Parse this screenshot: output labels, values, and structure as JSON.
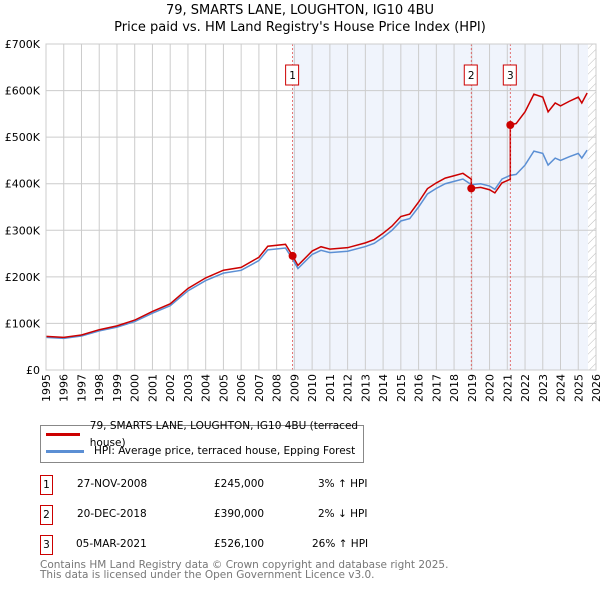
{
  "chart_data": {
    "type": "line",
    "title": "79, SMARTS LANE, LOUGHTON, IG10 4BU",
    "subtitle": "Price paid vs. HM Land Registry's House Price Index (HPI)",
    "xlim": [
      1995,
      2026
    ],
    "ylim": [
      0,
      700000
    ],
    "x_ticks": [
      "1995",
      "1996",
      "1997",
      "1998",
      "1999",
      "2000",
      "2001",
      "2002",
      "2003",
      "2004",
      "2005",
      "2006",
      "2007",
      "2008",
      "2009",
      "2010",
      "2011",
      "2012",
      "2013",
      "2014",
      "2015",
      "2016",
      "2017",
      "2018",
      "2019",
      "2020",
      "2021",
      "2022",
      "2023",
      "2024",
      "2025",
      "2026"
    ],
    "y_ticks": [
      {
        "v": 0,
        "label": "£0"
      },
      {
        "v": 100000,
        "label": "£100K"
      },
      {
        "v": 200000,
        "label": "£200K"
      },
      {
        "v": 300000,
        "label": "£300K"
      },
      {
        "v": 400000,
        "label": "£400K"
      },
      {
        "v": 500000,
        "label": "£500K"
      },
      {
        "v": 600000,
        "label": "£600K"
      },
      {
        "v": 700000,
        "label": "£700K"
      }
    ],
    "grid": true,
    "shaded_range": [
      2008.9,
      2025.55
    ],
    "hatched_from": 2025.55,
    "series": [
      {
        "name": "HPI: Average price, terraced house, Epping Forest",
        "color": "#5b8fd4",
        "x": [
          1995,
          1996,
          1997,
          1998,
          1999,
          2000,
          2001,
          2002,
          2003,
          2004,
          2005,
          2006,
          2007,
          2007.5,
          2008.5,
          2008.9,
          2009.2,
          2010,
          2010.5,
          2011,
          2012,
          2013,
          2013.5,
          2014,
          2014.5,
          2015,
          2015.5,
          2016,
          2016.5,
          2017,
          2017.5,
          2018,
          2018.5,
          2018.97,
          2019.5,
          2020,
          2020.3,
          2020.7,
          2021.17,
          2021.5,
          2022,
          2022.5,
          2023,
          2023.3,
          2023.7,
          2024,
          2024.5,
          2025,
          2025.2,
          2025.5
        ],
        "y": [
          70000,
          68000,
          73000,
          84000,
          92000,
          104000,
          122000,
          138000,
          170000,
          192000,
          208000,
          214000,
          235000,
          258000,
          262000,
          238000,
          218000,
          248000,
          257000,
          252000,
          255000,
          265000,
          272000,
          285000,
          300000,
          320000,
          325000,
          350000,
          378000,
          390000,
          400000,
          405000,
          410000,
          398000,
          400000,
          395000,
          388000,
          410000,
          418000,
          420000,
          440000,
          470000,
          465000,
          440000,
          455000,
          450000,
          458000,
          465000,
          455000,
          472000
        ]
      },
      {
        "name": "79, SMARTS LANE, LOUGHTON, IG10 4BU (terraced house)",
        "color": "#cc0000",
        "ratio_segments": [
          {
            "until": 2018.97,
            "ratio": 1.03
          },
          {
            "until": 2021.17,
            "ratio": 0.98
          },
          {
            "until": 2026,
            "ratio": 1.26
          }
        ]
      }
    ],
    "sales": [
      {
        "n": "1",
        "x": 2008.9,
        "y": 245000,
        "date": "27-NOV-2008",
        "price": "£245,000",
        "hpi": "3% ↑ HPI"
      },
      {
        "n": "2",
        "x": 2018.97,
        "y": 390000,
        "date": "20-DEC-2018",
        "price": "£390,000",
        "hpi": "2% ↓ HPI"
      },
      {
        "n": "3",
        "x": 2021.17,
        "y": 526100,
        "date": "05-MAR-2021",
        "price": "£526,100",
        "hpi": "26% ↑ HPI"
      }
    ]
  },
  "legend": {
    "property": "79, SMARTS LANE, LOUGHTON, IG10 4BU (terraced house)",
    "hpi": "HPI: Average price, terraced house, Epping Forest"
  },
  "footer": {
    "line1": "Contains HM Land Registry data © Crown copyright and database right 2025.",
    "line2": "This data is licensed under the Open Government Licence v3.0."
  }
}
